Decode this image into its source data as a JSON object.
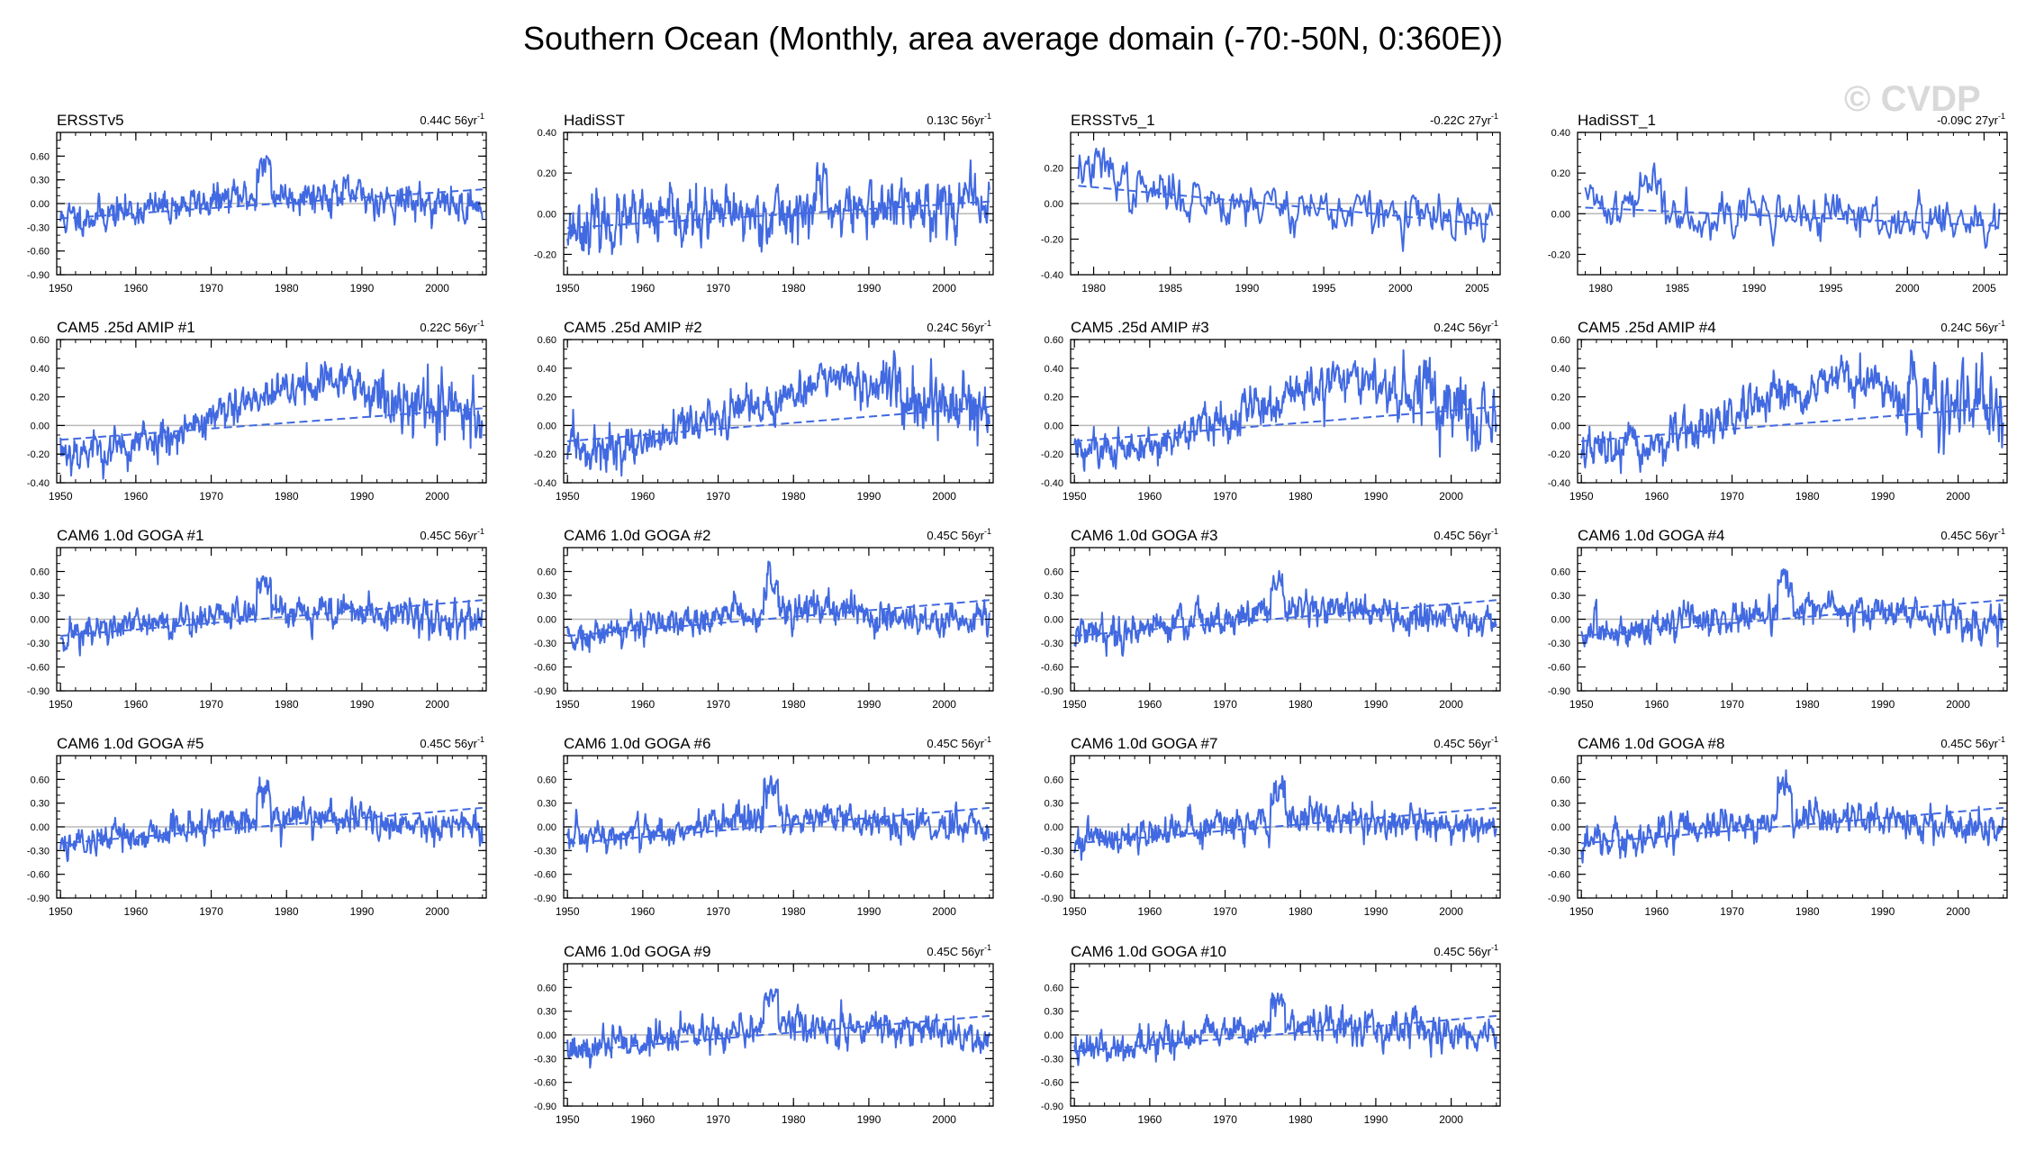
{
  "title": "Southern Ocean (Monthly, area average domain (-70:-50N, 0:360E))",
  "watermark": "© CVDP",
  "colors": {
    "series": "#4169e1",
    "zero_line": "#b8b8b8",
    "axis": "#000000"
  },
  "chart_data": [
    {
      "type": "line",
      "title": "ERSSTv5",
      "trend_label": "0.44C 56yr",
      "trend_sup": "-1",
      "xlim": [
        1949.5,
        2006.5
      ],
      "ylim": [
        -0.9,
        0.9
      ],
      "yticks": [
        -0.9,
        -0.6,
        -0.3,
        0,
        0.3,
        0.6
      ],
      "xticks": [
        1950,
        1960,
        1970,
        1980,
        1990,
        2000
      ],
      "trend": [
        -0.19,
        0.18
      ],
      "variant": "obs-sst",
      "seed": 11
    },
    {
      "type": "line",
      "title": "HadiSST",
      "trend_label": "0.13C 56yr",
      "trend_sup": "-1",
      "xlim": [
        1949.5,
        2006.5
      ],
      "ylim": [
        -0.3,
        0.4
      ],
      "yticks": [
        -0.2,
        0,
        0.2,
        0.4
      ],
      "xticks": [
        1950,
        1960,
        1970,
        1980,
        1990,
        2000
      ],
      "trend": [
        -0.07,
        0.06
      ],
      "variant": "obs-had",
      "seed": 23
    },
    {
      "type": "line",
      "title": "ERSSTv5_1",
      "trend_label": "-0.22C 27yr",
      "trend_sup": "-1",
      "xlim": [
        1978.5,
        2006.5
      ],
      "ylim": [
        -0.4,
        0.4
      ],
      "yticks": [
        -0.4,
        -0.2,
        0,
        0.2
      ],
      "xticks": [
        1980,
        1985,
        1990,
        1995,
        2000,
        2005
      ],
      "trend": [
        0.1,
        -0.12
      ],
      "variant": "obs-short",
      "seed": 37
    },
    {
      "type": "line",
      "title": "HadiSST_1",
      "trend_label": "-0.09C 27yr",
      "trend_sup": "-1",
      "xlim": [
        1978.5,
        2006.5
      ],
      "ylim": [
        -0.3,
        0.4
      ],
      "yticks": [
        -0.2,
        0,
        0.2,
        0.4
      ],
      "xticks": [
        1980,
        1985,
        1990,
        1995,
        2000,
        2005
      ],
      "trend": [
        0.03,
        -0.06
      ],
      "variant": "obs-short2",
      "seed": 41
    },
    {
      "type": "line",
      "title": "CAM5 .25d AMIP #1",
      "trend_label": "0.22C 56yr",
      "trend_sup": "-1",
      "xlim": [
        1949.5,
        2006.5
      ],
      "ylim": [
        -0.4,
        0.6
      ],
      "yticks": [
        -0.4,
        -0.2,
        0,
        0.2,
        0.4,
        0.6
      ],
      "xticks": [
        1950,
        1960,
        1970,
        1980,
        1990,
        2000
      ],
      "trend": [
        -0.1,
        0.12
      ],
      "variant": "amip",
      "seed": 53
    },
    {
      "type": "line",
      "title": "CAM5 .25d AMIP #2",
      "trend_label": "0.24C 56yr",
      "trend_sup": "-1",
      "xlim": [
        1949.5,
        2006.5
      ],
      "ylim": [
        -0.4,
        0.6
      ],
      "yticks": [
        -0.4,
        -0.2,
        0,
        0.2,
        0.4,
        0.6
      ],
      "xticks": [
        1950,
        1960,
        1970,
        1980,
        1990,
        2000
      ],
      "trend": [
        -0.11,
        0.13
      ],
      "variant": "amip",
      "seed": 59
    },
    {
      "type": "line",
      "title": "CAM5 .25d AMIP #3",
      "trend_label": "0.24C 56yr",
      "trend_sup": "-1",
      "xlim": [
        1949.5,
        2006.5
      ],
      "ylim": [
        -0.4,
        0.6
      ],
      "yticks": [
        -0.4,
        -0.2,
        0,
        0.2,
        0.4,
        0.6
      ],
      "xticks": [
        1950,
        1960,
        1970,
        1980,
        1990,
        2000
      ],
      "trend": [
        -0.11,
        0.13
      ],
      "variant": "amip",
      "seed": 61
    },
    {
      "type": "line",
      "title": "CAM5 .25d AMIP #4",
      "trend_label": "0.24C 56yr",
      "trend_sup": "-1",
      "xlim": [
        1949.5,
        2006.5
      ],
      "ylim": [
        -0.4,
        0.6
      ],
      "yticks": [
        -0.4,
        -0.2,
        0,
        0.2,
        0.4,
        0.6
      ],
      "xticks": [
        1950,
        1960,
        1970,
        1980,
        1990,
        2000
      ],
      "trend": [
        -0.11,
        0.13
      ],
      "variant": "amip",
      "seed": 67
    },
    {
      "type": "line",
      "title": "CAM6 1.0d GOGA #1",
      "trend_label": "0.45C 56yr",
      "trend_sup": "-1",
      "xlim": [
        1949.5,
        2006.5
      ],
      "ylim": [
        -0.9,
        0.9
      ],
      "yticks": [
        -0.9,
        -0.6,
        -0.3,
        0,
        0.3,
        0.6
      ],
      "xticks": [
        1950,
        1960,
        1970,
        1980,
        1990,
        2000
      ],
      "trend": [
        -0.21,
        0.24
      ],
      "variant": "goga",
      "seed": 71
    },
    {
      "type": "line",
      "title": "CAM6 1.0d GOGA #2",
      "trend_label": "0.45C 56yr",
      "trend_sup": "-1",
      "xlim": [
        1949.5,
        2006.5
      ],
      "ylim": [
        -0.9,
        0.9
      ],
      "yticks": [
        -0.9,
        -0.6,
        -0.3,
        0,
        0.3,
        0.6
      ],
      "xticks": [
        1950,
        1960,
        1970,
        1980,
        1990,
        2000
      ],
      "trend": [
        -0.21,
        0.24
      ],
      "variant": "goga",
      "seed": 73
    },
    {
      "type": "line",
      "title": "CAM6 1.0d GOGA #3",
      "trend_label": "0.45C 56yr",
      "trend_sup": "-1",
      "xlim": [
        1949.5,
        2006.5
      ],
      "ylim": [
        -0.9,
        0.9
      ],
      "yticks": [
        -0.9,
        -0.6,
        -0.3,
        0,
        0.3,
        0.6
      ],
      "xticks": [
        1950,
        1960,
        1970,
        1980,
        1990,
        2000
      ],
      "trend": [
        -0.21,
        0.24
      ],
      "variant": "goga",
      "seed": 79
    },
    {
      "type": "line",
      "title": "CAM6 1.0d GOGA #4",
      "trend_label": "0.45C 56yr",
      "trend_sup": "-1",
      "xlim": [
        1949.5,
        2006.5
      ],
      "ylim": [
        -0.9,
        0.9
      ],
      "yticks": [
        -0.9,
        -0.6,
        -0.3,
        0,
        0.3,
        0.6
      ],
      "xticks": [
        1950,
        1960,
        1970,
        1980,
        1990,
        2000
      ],
      "trend": [
        -0.21,
        0.24
      ],
      "variant": "goga",
      "seed": 83
    },
    {
      "type": "line",
      "title": "CAM6 1.0d GOGA #5",
      "trend_label": "0.45C 56yr",
      "trend_sup": "-1",
      "xlim": [
        1949.5,
        2006.5
      ],
      "ylim": [
        -0.9,
        0.9
      ],
      "yticks": [
        -0.9,
        -0.6,
        -0.3,
        0,
        0.3,
        0.6
      ],
      "xticks": [
        1950,
        1960,
        1970,
        1980,
        1990,
        2000
      ],
      "trend": [
        -0.21,
        0.24
      ],
      "variant": "goga",
      "seed": 89
    },
    {
      "type": "line",
      "title": "CAM6 1.0d GOGA #6",
      "trend_label": "0.45C 56yr",
      "trend_sup": "-1",
      "xlim": [
        1949.5,
        2006.5
      ],
      "ylim": [
        -0.9,
        0.9
      ],
      "yticks": [
        -0.9,
        -0.6,
        -0.3,
        0,
        0.3,
        0.6
      ],
      "xticks": [
        1950,
        1960,
        1970,
        1980,
        1990,
        2000
      ],
      "trend": [
        -0.21,
        0.24
      ],
      "variant": "goga",
      "seed": 97
    },
    {
      "type": "line",
      "title": "CAM6 1.0d GOGA #7",
      "trend_label": "0.45C 56yr",
      "trend_sup": "-1",
      "xlim": [
        1949.5,
        2006.5
      ],
      "ylim": [
        -0.9,
        0.9
      ],
      "yticks": [
        -0.9,
        -0.6,
        -0.3,
        0,
        0.3,
        0.6
      ],
      "xticks": [
        1950,
        1960,
        1970,
        1980,
        1990,
        2000
      ],
      "trend": [
        -0.21,
        0.24
      ],
      "variant": "goga",
      "seed": 101
    },
    {
      "type": "line",
      "title": "CAM6 1.0d GOGA #8",
      "trend_label": "0.45C 56yr",
      "trend_sup": "-1",
      "xlim": [
        1949.5,
        2006.5
      ],
      "ylim": [
        -0.9,
        0.9
      ],
      "yticks": [
        -0.9,
        -0.6,
        -0.3,
        0,
        0.3,
        0.6
      ],
      "xticks": [
        1950,
        1960,
        1970,
        1980,
        1990,
        2000
      ],
      "trend": [
        -0.21,
        0.24
      ],
      "variant": "goga",
      "seed": 103
    },
    {
      "type": "line",
      "title": "CAM6 1.0d GOGA #9",
      "trend_label": "0.45C 56yr",
      "trend_sup": "-1",
      "xlim": [
        1949.5,
        2006.5
      ],
      "ylim": [
        -0.9,
        0.9
      ],
      "yticks": [
        -0.9,
        -0.6,
        -0.3,
        0,
        0.3,
        0.6
      ],
      "xticks": [
        1950,
        1960,
        1970,
        1980,
        1990,
        2000
      ],
      "trend": [
        -0.21,
        0.24
      ],
      "variant": "goga",
      "seed": 107
    },
    {
      "type": "line",
      "title": "CAM6 1.0d GOGA #10",
      "trend_label": "0.45C 56yr",
      "trend_sup": "-1",
      "xlim": [
        1949.5,
        2006.5
      ],
      "ylim": [
        -0.9,
        0.9
      ],
      "yticks": [
        -0.9,
        -0.6,
        -0.3,
        0,
        0.3,
        0.6
      ],
      "xticks": [
        1950,
        1960,
        1970,
        1980,
        1990,
        2000
      ],
      "trend": [
        -0.21,
        0.24
      ],
      "variant": "goga",
      "seed": 109
    }
  ]
}
